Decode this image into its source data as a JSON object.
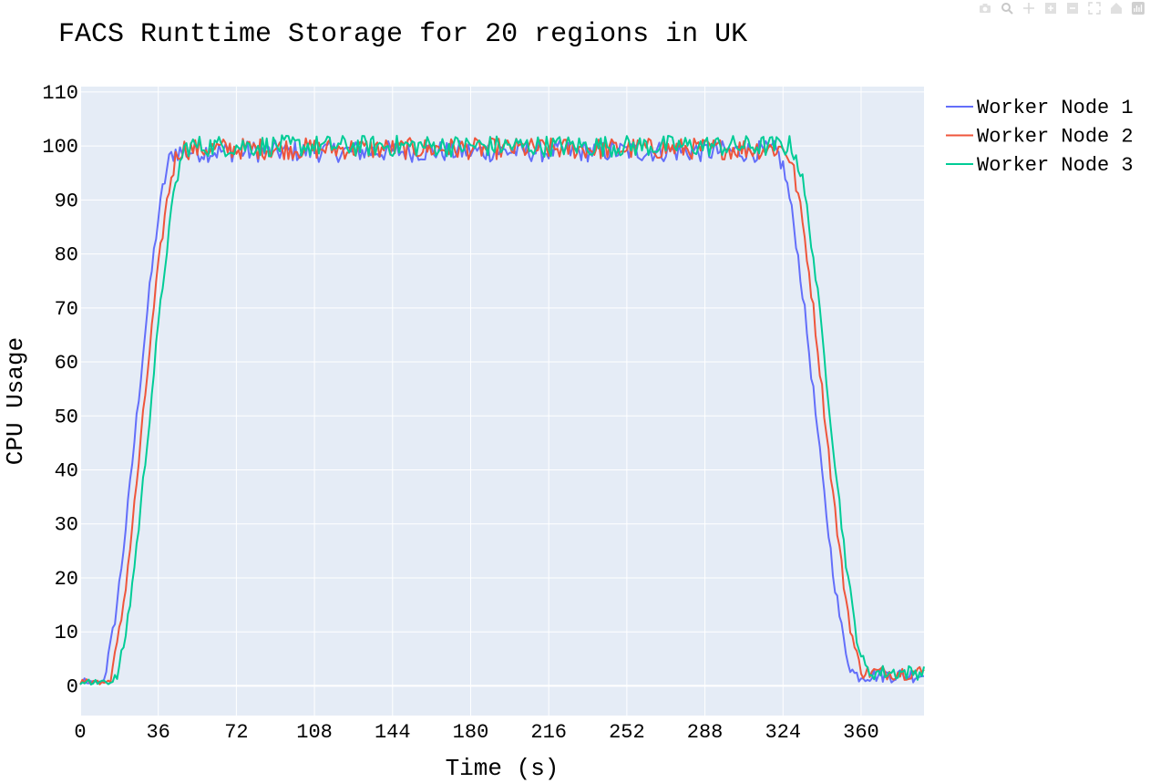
{
  "chart_data": {
    "type": "line",
    "title": "FACS Runttime Storage for 20 regions in UK",
    "xlabel": "Time (s)",
    "ylabel": "CPU Usage",
    "xlim": [
      0,
      389
    ],
    "ylim": [
      -5.5,
      111
    ],
    "x_ticks": [
      0,
      36,
      72,
      108,
      144,
      180,
      216,
      252,
      288,
      324,
      360
    ],
    "y_ticks": [
      0,
      10,
      20,
      30,
      40,
      50,
      60,
      70,
      80,
      90,
      100,
      110
    ],
    "grid": true,
    "legend_position": "top-right outside",
    "plot_background": "#e5ecf6",
    "series": [
      {
        "name": "Worker Node 1",
        "color": "#636efa",
        "shape": {
          "start": 0.0,
          "rise_start": 8.0,
          "rise_end": 44.0,
          "plateau": 99.0,
          "fall_start": 320.0,
          "fall_end": 358.0,
          "end": 2.0
        }
      },
      {
        "name": "Worker Node 2",
        "color": "#ef553b",
        "shape": {
          "start": 0.0,
          "rise_start": 11.0,
          "rise_end": 47.0,
          "plateau": 99.5,
          "fall_start": 324.0,
          "fall_end": 362.0,
          "end": 2.5
        }
      },
      {
        "name": "Worker Node 3",
        "color": "#00cc96",
        "shape": {
          "start": 0.0,
          "rise_start": 14.0,
          "rise_end": 50.0,
          "plateau": 100.0,
          "fall_start": 327.0,
          "fall_end": 364.0,
          "end": 2.5
        }
      }
    ]
  },
  "toolbar": [
    "camera-icon",
    "zoom-icon",
    "pan-icon",
    "zoom-in-icon",
    "zoom-out-icon",
    "autoscale-icon",
    "reset-axes-icon",
    "plotly-logo-icon"
  ]
}
